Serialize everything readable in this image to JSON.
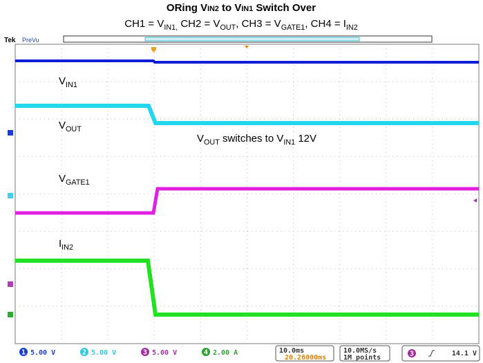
{
  "title": [
    {
      "t": "ORing V"
    },
    {
      "small": "IN2"
    },
    {
      "t": " to V"
    },
    {
      "small": "IN1"
    },
    {
      "t": " Switch Over"
    }
  ],
  "subtitle": [
    {
      "t": "CH1 = V"
    },
    {
      "sub": "IN1,"
    },
    {
      "t": " CH2 = V"
    },
    {
      "sub": "OUT"
    },
    {
      "t": ", CH3 = V"
    },
    {
      "sub": "GATE1"
    },
    {
      "t": ", CH4 = I"
    },
    {
      "sub": "IN2"
    }
  ],
  "header": {
    "brand": "Tek",
    "mode": "PreVu"
  },
  "annotations": [
    [
      {
        "t": "V"
      },
      {
        "sub": "IN1"
      }
    ],
    [
      {
        "t": "V"
      },
      {
        "sub": "OUT"
      }
    ],
    [
      {
        "t": "V"
      },
      {
        "sub": "OUT"
      },
      {
        "t": " switches to V"
      },
      {
        "sub": "IN1"
      },
      {
        "t": " 12V"
      }
    ],
    [
      {
        "t": "V"
      },
      {
        "sub": "GATE1"
      }
    ],
    [
      {
        "t": "I"
      },
      {
        "sub": "IN2"
      }
    ]
  ],
  "status": {
    "channels": [
      {
        "num": "1",
        "scale": "5.00 V"
      },
      {
        "num": "2",
        "scale": "5.00 V"
      },
      {
        "num": "3",
        "scale": "5.00 V"
      },
      {
        "num": "4",
        "scale": "2.00 A"
      }
    ],
    "timebase": "10.0ms",
    "trigger_pos": "20.26000ms",
    "sample_rate": "10.0MS/s",
    "record": "1M points",
    "trigger": {
      "ch": "3",
      "level": "14.1 V"
    }
  }
}
